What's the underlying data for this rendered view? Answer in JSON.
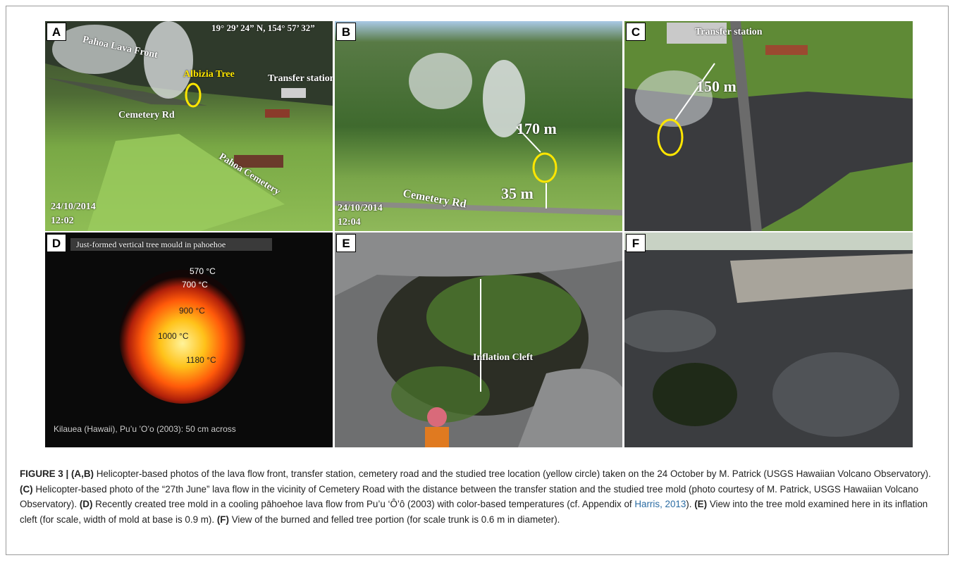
{
  "panels": [
    {
      "letter": "A",
      "labels": [
        "19° 29’ 24” N, 154° 57’ 32”",
        "Pahoa Lava Front",
        "Albizia Tree",
        "Transfer station",
        "Cemetery Rd",
        "Pahoa Cemetery",
        "24/10/2014",
        "12:02"
      ]
    },
    {
      "letter": "B",
      "labels": [
        "170 m",
        "35 m",
        "Cemetery Rd",
        "24/10/2014",
        "12:04"
      ]
    },
    {
      "letter": "C",
      "labels": [
        "Transfer station",
        "150 m"
      ]
    },
    {
      "letter": "D",
      "labels": [
        "Just-formed vertical tree mould in pahoehoe",
        "570 °C",
        "700 °C",
        "900 °C",
        "1000 °C",
        "1180 °C",
        "Kilauea (Hawaii), Pu’u ’O’o (2003): 50 cm across"
      ]
    },
    {
      "letter": "E",
      "labels": [
        "Inflation Cleft"
      ]
    },
    {
      "letter": "F",
      "labels": []
    }
  ],
  "caption": {
    "figure": "FIGURE 3 |",
    "parts": [
      {
        "ref": "(A,B)",
        "text": "Helicopter-based photos of the lava flow front, transfer station, cemetery road and the studied tree location (yellow circle) taken on the 24 October by M. Patrick (USGS Hawaiian Volcano Observatory)."
      },
      {
        "ref": "(C)",
        "text": "Helicopter-based photo of the “27th June” lava flow in the vicinity of Cemetery Road with the distance between the transfer station and the studied tree mold (photo courtesy of M. Patrick, USGS Hawaiian Volcano Observatory)."
      },
      {
        "ref": "(D)",
        "text": "Recently created tree mold in a cooling pāhoehoe lava flow from Pu’u ‘Ô’ô (2003) with color-based temperatures (cf. Appendix of",
        "link": "Harris, 2013",
        "after": ")."
      },
      {
        "ref": "(E)",
        "text": "View into the tree mold examined here in its inflation cleft (for scale, width of mold at base is 0.9 m)."
      },
      {
        "ref": "(F)",
        "text": "View of the burned and felled tree portion (for scale trunk is 0.6 m in diameter)."
      }
    ]
  }
}
